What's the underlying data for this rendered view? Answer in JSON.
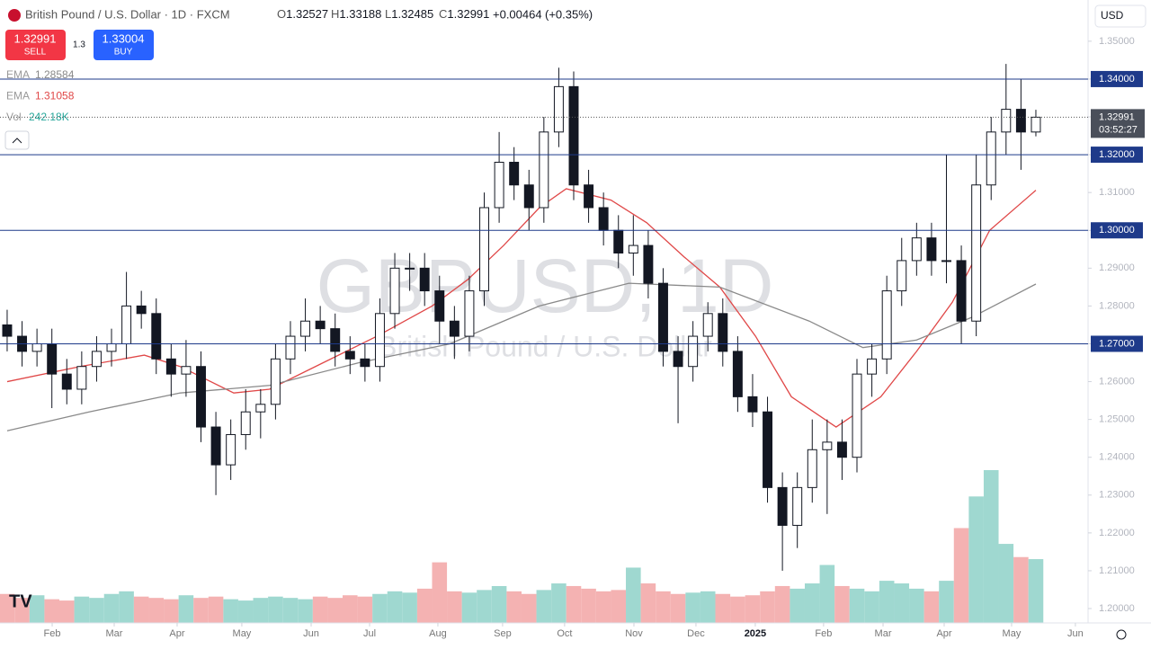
{
  "chart_data": {
    "type": "candlestick",
    "symbol": "British Pound / U.S. Dollar · 1D · FXCM",
    "watermark": "GBPUSD, 1D",
    "watermark_sub": "British Pound / U.S. Dollar",
    "ohlc": {
      "open": 1.32527,
      "high": 1.33188,
      "low": 1.32485,
      "close": 1.32991,
      "change": {
        "value": 0.00464,
        "label": "+0.00464"
      },
      "change_pct": {
        "value": 0.35,
        "label": "(+0.35%)"
      }
    },
    "sell": {
      "price": 1.32991,
      "label": "SELL"
    },
    "buy": {
      "price": 1.33004,
      "label": "BUY"
    },
    "spread": 1.3,
    "currency": "USD",
    "countdown": "03:52:27",
    "indicators": [
      {
        "name": "EMA",
        "value": 1.28584,
        "color": "#888888"
      },
      {
        "name": "EMA",
        "value": 1.31058,
        "color": "#e04848"
      },
      {
        "name": "Vol",
        "value": {
          "value": 242.18,
          "label": "242.18K"
        },
        "color": "#26a69a"
      }
    ],
    "up_color": "#ffffff",
    "down_color": "#131722",
    "xlim": [
      -0.48,
      72.5
    ],
    "xticks": [
      {
        "value": 3.02,
        "label": "Feb"
      },
      {
        "value": 7.18,
        "label": "Mar"
      },
      {
        "value": 11.4,
        "label": "Apr"
      },
      {
        "value": 15.74,
        "label": "May"
      },
      {
        "value": 20.39,
        "label": "Jun"
      },
      {
        "value": 24.31,
        "label": "Jul"
      },
      {
        "value": 28.89,
        "label": "Aug"
      },
      {
        "value": 33.23,
        "label": "Sep"
      },
      {
        "value": 37.39,
        "label": "Oct"
      },
      {
        "value": 42.04,
        "label": "Nov"
      },
      {
        "value": 46.2,
        "label": "Dec"
      },
      {
        "value": 50.18,
        "label": "2025"
      },
      {
        "value": 54.76,
        "label": "Feb"
      },
      {
        "value": 58.75,
        "label": "Mar"
      },
      {
        "value": 62.85,
        "label": "Apr"
      },
      {
        "value": 67.37,
        "label": "May"
      },
      {
        "value": 71.65,
        "label": "Jun"
      }
    ],
    "ylim": [
      1.1962,
      1.3609
    ],
    "yticks": [
      {
        "value": 1.35,
        "label": "1.35000"
      },
      {
        "value": 1.34,
        "label": "1.34000"
      },
      {
        "value": 1.33,
        "label": "1.33000"
      },
      {
        "value": 1.32,
        "label": "1.32000"
      },
      {
        "value": 1.31,
        "label": "1.31000"
      },
      {
        "value": 1.3,
        "label": "1.30000"
      },
      {
        "value": 1.29,
        "label": "1.29000"
      },
      {
        "value": 1.28,
        "label": "1.28000"
      },
      {
        "value": 1.27,
        "label": "1.27000"
      },
      {
        "value": 1.26,
        "label": "1.26000"
      },
      {
        "value": 1.25,
        "label": "1.25000"
      },
      {
        "value": 1.24,
        "label": "1.24000"
      },
      {
        "value": 1.23,
        "label": "1.23000"
      },
      {
        "value": 1.22,
        "label": "1.22000"
      },
      {
        "value": 1.21,
        "label": "1.21000"
      },
      {
        "value": 1.2,
        "label": "1.20000"
      }
    ],
    "levels": [
      {
        "value": 1.34,
        "label": "1.34000"
      },
      {
        "value": 1.32,
        "label": "1.32000"
      },
      {
        "value": 1.3,
        "label": "1.30000"
      },
      {
        "value": 1.27,
        "label": "1.27000"
      }
    ],
    "level_color": "#1e3a8a",
    "last_price": {
      "value": 1.32991,
      "label": "1.32991"
    },
    "open": [
      1.275,
      1.272,
      1.268,
      1.27,
      1.262,
      1.258,
      1.264,
      1.268,
      1.27,
      1.28,
      1.278,
      1.266,
      1.262,
      1.264,
      1.248,
      1.238,
      1.246,
      1.252,
      1.254,
      1.266,
      1.272,
      1.276,
      1.274,
      1.268,
      1.266,
      1.264,
      1.278,
      1.29,
      1.29,
      1.284,
      1.276,
      1.272,
      1.284,
      1.306,
      1.318,
      1.312,
      1.306,
      1.326,
      1.338,
      1.312,
      1.306,
      1.3,
      1.294,
      1.296,
      1.286,
      1.268,
      1.264,
      1.272,
      1.278,
      1.268,
      1.256,
      1.252,
      1.232,
      1.222,
      1.232,
      1.242,
      1.244,
      1.24,
      1.262,
      1.266,
      1.284,
      1.292,
      1.298,
      1.292,
      1.292,
      1.276,
      1.312,
      1.326,
      1.332,
      1.326
    ],
    "high": [
      1.279,
      1.276,
      1.274,
      1.274,
      1.266,
      1.268,
      1.272,
      1.274,
      1.289,
      1.284,
      1.282,
      1.27,
      1.271,
      1.268,
      1.252,
      1.25,
      1.258,
      1.258,
      1.27,
      1.276,
      1.282,
      1.28,
      1.278,
      1.272,
      1.27,
      1.282,
      1.294,
      1.294,
      1.294,
      1.288,
      1.28,
      1.288,
      1.31,
      1.326,
      1.322,
      1.316,
      1.33,
      1.343,
      1.342,
      1.316,
      1.31,
      1.304,
      1.304,
      1.3,
      1.29,
      1.272,
      1.276,
      1.281,
      1.282,
      1.272,
      1.262,
      1.256,
      1.236,
      1.236,
      1.25,
      1.25,
      1.25,
      1.266,
      1.27,
      1.288,
      1.298,
      1.302,
      1.302,
      1.32,
      1.296,
      1.32,
      1.33,
      1.344,
      1.34,
      1.33188
    ],
    "low": [
      1.268,
      1.264,
      1.264,
      1.253,
      1.254,
      1.254,
      1.26,
      1.264,
      1.266,
      1.274,
      1.262,
      1.256,
      1.256,
      1.244,
      1.23,
      1.234,
      1.242,
      1.245,
      1.25,
      1.262,
      1.268,
      1.27,
      1.264,
      1.262,
      1.26,
      1.26,
      1.274,
      1.284,
      1.28,
      1.27,
      1.266,
      1.268,
      1.28,
      1.302,
      1.308,
      1.3,
      1.302,
      1.322,
      1.308,
      1.302,
      1.296,
      1.29,
      1.288,
      1.282,
      1.264,
      1.249,
      1.26,
      1.268,
      1.264,
      1.252,
      1.248,
      1.228,
      1.21,
      1.216,
      1.228,
      1.225,
      1.234,
      1.236,
      1.256,
      1.262,
      1.28,
      1.288,
      1.288,
      1.286,
      1.27,
      1.272,
      1.308,
      1.32,
      1.316,
      1.32485
    ],
    "close": [
      1.272,
      1.268,
      1.27,
      1.262,
      1.258,
      1.264,
      1.268,
      1.27,
      1.28,
      1.278,
      1.266,
      1.262,
      1.264,
      1.248,
      1.238,
      1.246,
      1.252,
      1.254,
      1.266,
      1.272,
      1.276,
      1.274,
      1.268,
      1.266,
      1.264,
      1.278,
      1.29,
      1.29,
      1.284,
      1.276,
      1.272,
      1.284,
      1.306,
      1.318,
      1.312,
      1.306,
      1.326,
      1.338,
      1.312,
      1.306,
      1.3,
      1.294,
      1.296,
      1.286,
      1.268,
      1.264,
      1.272,
      1.278,
      1.268,
      1.256,
      1.252,
      1.232,
      1.222,
      1.232,
      1.242,
      1.244,
      1.24,
      1.262,
      1.266,
      1.284,
      1.292,
      1.298,
      1.292,
      1.292,
      1.276,
      1.312,
      1.326,
      1.332,
      1.326,
      1.32991
    ],
    "volume": [
      110,
      95,
      105,
      90,
      85,
      100,
      95,
      110,
      120,
      100,
      95,
      90,
      105,
      95,
      100,
      90,
      85,
      95,
      100,
      95,
      90,
      100,
      95,
      105,
      100,
      110,
      120,
      115,
      130,
      230,
      120,
      115,
      125,
      140,
      120,
      110,
      125,
      150,
      140,
      130,
      120,
      125,
      210,
      150,
      120,
      110,
      115,
      120,
      110,
      100,
      105,
      120,
      140,
      130,
      150,
      220,
      140,
      130,
      120,
      160,
      150,
      130,
      120,
      160,
      360,
      480,
      580,
      300,
      250,
      242.18
    ],
    "volume_up_color": "#9fd8d0",
    "volume_down_color": "#f4b2b2",
    "lines": [
      {
        "name": "EMA",
        "color": "#e04848",
        "x": [
          0,
          4.9,
          9.2,
          11.6,
          15.2,
          17.6,
          21.2,
          24.8,
          28.5,
          30.9,
          33.3,
          35.7,
          37.5,
          40.5,
          42.9,
          45.4,
          47.8,
          50.2,
          52.6,
          55.6,
          58.6,
          61.0,
          63.4,
          65.9,
          69
        ],
        "values": [
          1.26,
          1.264,
          1.267,
          1.264,
          1.257,
          1.258,
          1.265,
          1.272,
          1.28,
          1.287,
          1.296,
          1.306,
          1.311,
          1.308,
          1.302,
          1.293,
          1.285,
          1.272,
          1.256,
          1.248,
          1.256,
          1.268,
          1.281,
          1.3,
          1.3106
        ]
      },
      {
        "name": "EMA",
        "color": "#8a8a8a",
        "x": [
          0,
          5.5,
          11.6,
          17.6,
          23.6,
          29.7,
          35.7,
          41.7,
          47.8,
          53.8,
          57.4,
          61.0,
          64.7,
          69
        ],
        "values": [
          1.247,
          1.252,
          1.257,
          1.259,
          1.265,
          1.27,
          1.28,
          1.286,
          1.285,
          1.276,
          1.269,
          1.271,
          1.277,
          1.2858
        ]
      }
    ]
  }
}
